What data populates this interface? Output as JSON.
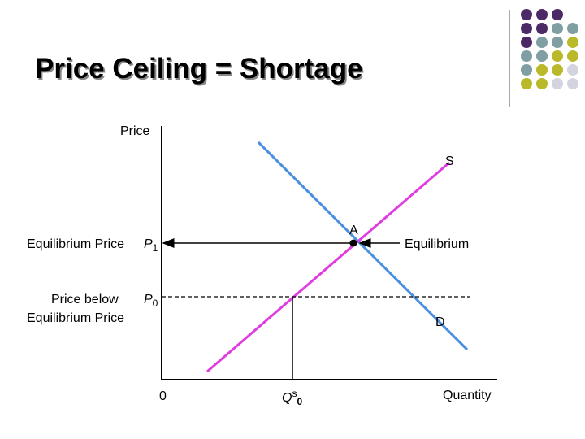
{
  "title": "Price Ceiling = Shortage",
  "axes": {
    "y_label": "Price",
    "x_label": "Quantity",
    "origin": "0"
  },
  "curves": {
    "supply": "S",
    "demand": "D"
  },
  "equilibrium": {
    "point": "A",
    "label": "Equilibrium",
    "price_label": "Equilibrium Price",
    "price_symbol": "P",
    "price_subscript": "1"
  },
  "ceiling": {
    "label_line1": "Price below",
    "label_line2": "Equilibrium Price",
    "price_symbol": "P",
    "price_subscript": "0"
  },
  "quantity_supplied": {
    "symbol": "Q",
    "superscript": "s",
    "subscript": "0"
  }
}
